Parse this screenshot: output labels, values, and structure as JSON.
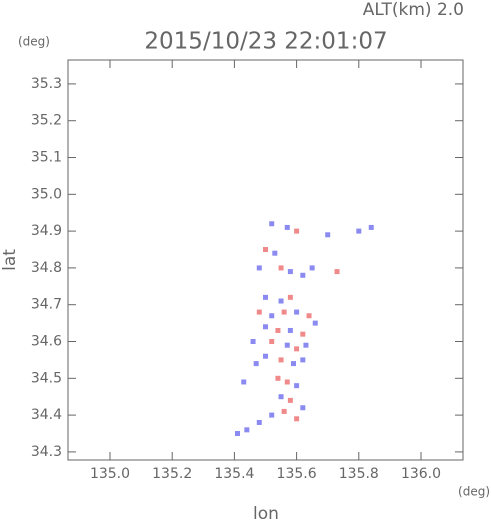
{
  "chart_data": {
    "type": "scatter",
    "title": "2015/10/23 22:01:07",
    "subtitle": "ALT(km) 2.0",
    "y_unit": "(deg)",
    "x_unit": "(deg)",
    "x_label": "lon",
    "y_label": "lat",
    "xlim": [
      134.865,
      136.135
    ],
    "ylim": [
      34.278,
      35.365
    ],
    "xticks": [
      {
        "value": 135.0,
        "label": "135.0"
      },
      135.2,
      135.4,
      135.6,
      135.8,
      {
        "value": 136.0,
        "label": "136.0"
      }
    ],
    "yticks": [
      34.3,
      34.4,
      34.5,
      34.6,
      34.7,
      34.8,
      34.9,
      {
        "value": 35.0,
        "label": "35.0"
      },
      35.1,
      35.2,
      35.3
    ],
    "x": [
      135.52,
      135.57,
      135.6,
      135.7,
      135.8,
      135.84,
      135.5,
      135.53,
      135.48,
      135.55,
      135.58,
      135.62,
      135.65,
      135.73,
      135.5,
      135.55,
      135.58,
      135.48,
      135.52,
      135.56,
      135.6,
      135.64,
      135.66,
      135.5,
      135.54,
      135.58,
      135.62,
      135.46,
      135.52,
      135.57,
      135.6,
      135.63,
      135.5,
      135.55,
      135.59,
      135.62,
      135.54,
      135.57,
      135.6,
      135.55,
      135.58,
      135.62,
      135.52,
      135.56,
      135.6,
      135.48,
      135.44,
      135.41,
      135.43,
      135.47
    ],
    "y": [
      34.92,
      34.91,
      34.9,
      34.89,
      34.9,
      34.91,
      34.85,
      34.84,
      34.8,
      34.8,
      34.79,
      34.78,
      34.8,
      34.79,
      34.72,
      34.71,
      34.72,
      34.68,
      34.67,
      34.68,
      34.68,
      34.67,
      34.65,
      34.64,
      34.63,
      34.63,
      34.62,
      34.6,
      34.6,
      34.59,
      34.58,
      34.59,
      34.56,
      34.55,
      34.54,
      34.55,
      34.5,
      34.49,
      34.48,
      34.45,
      34.44,
      34.42,
      34.4,
      34.41,
      34.39,
      34.38,
      34.36,
      34.35,
      34.49,
      34.54
    ],
    "point_colors": [
      "#8a8af0",
      "#8a8af0",
      "#f08a8a",
      "#8a8af0",
      "#8a8af0",
      "#8a8af0",
      "#f08a8a",
      "#8a8af0",
      "#8a8af0",
      "#f08a8a",
      "#8a8af0",
      "#8a8af0",
      "#8a8af0",
      "#f08a8a",
      "#8a8af0",
      "#8a8af0",
      "#f08a8a",
      "#f08a8a",
      "#8a8af0",
      "#f08a8a",
      "#8a8af0",
      "#f08a8a",
      "#8a8af0",
      "#8a8af0",
      "#f08a8a",
      "#8a8af0",
      "#f08a8a",
      "#8a8af0",
      "#f08a8a",
      "#8a8af0",
      "#f08a8a",
      "#8a8af0",
      "#8a8af0",
      "#f08a8a",
      "#8a8af0",
      "#8a8af0",
      "#f08a8a",
      "#f08a8a",
      "#8a8af0",
      "#8a8af0",
      "#f08a8a",
      "#8a8af0",
      "#8a8af0",
      "#f08a8a",
      "#f08a8a",
      "#8a8af0",
      "#8a8af0",
      "#8a8af0",
      "#8a8af0",
      "#8a8af0"
    ]
  }
}
